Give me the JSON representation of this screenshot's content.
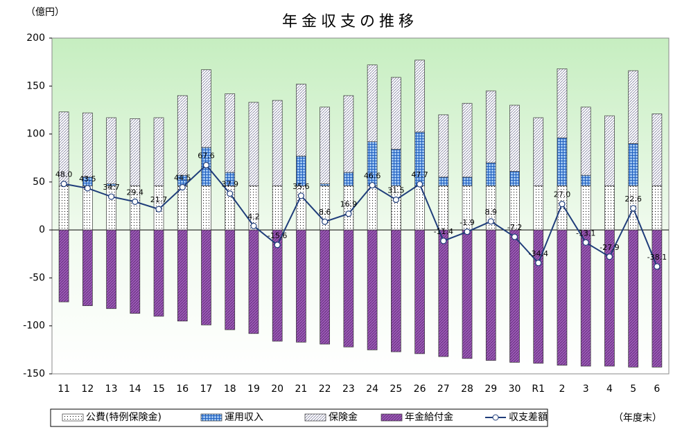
{
  "chart_data": {
    "type": "bar",
    "title": "年金収支の推移",
    "y_unit": "（億円）",
    "x_unit": "（年度末）",
    "categories": [
      "11",
      "12",
      "13",
      "14",
      "15",
      "16",
      "17",
      "18",
      "19",
      "20",
      "21",
      "22",
      "23",
      "24",
      "25",
      "26",
      "27",
      "28",
      "29",
      "30",
      "R1",
      "2",
      "3",
      "4",
      "5",
      "6"
    ],
    "series": [
      {
        "name": "公費(特例保険金)",
        "color": "#000000",
        "values": [
          46,
          46,
          46,
          46,
          46,
          46,
          46,
          46,
          46,
          46,
          46,
          46,
          46,
          46,
          46,
          46,
          46,
          46,
          46,
          46,
          46,
          46,
          46,
          46,
          46,
          46
        ]
      },
      {
        "name": "運用収入",
        "color": "#1f5fbf",
        "values": [
          0,
          9,
          2,
          0,
          0,
          11,
          40,
          14,
          0,
          0,
          31,
          2,
          14,
          46,
          38,
          56,
          9,
          9,
          24,
          15,
          0,
          50,
          11,
          0,
          44,
          0
        ]
      },
      {
        "name": "保険金",
        "color": "#7f7f9f",
        "values": [
          77,
          67,
          69,
          70,
          71,
          83,
          81,
          82,
          87,
          89,
          75,
          80,
          80,
          80,
          75,
          75,
          65,
          77,
          75,
          69,
          71,
          72,
          71,
          73,
          76,
          75
        ]
      },
      {
        "name": "年金給付金",
        "color": "#9b59b6",
        "values": [
          -75,
          -79,
          -82,
          -87,
          -90,
          -95,
          -99,
          -104,
          -108,
          -116,
          -117,
          -119,
          -122,
          -125,
          -127,
          -129,
          -132,
          -134,
          -136,
          -138,
          -139,
          -141,
          -142,
          -142,
          -143,
          -143
        ]
      },
      {
        "name": "収支差額",
        "type": "line",
        "color": "#1f3d7a",
        "values": [
          48.0,
          43.5,
          34.7,
          29.4,
          21.7,
          44.5,
          67.6,
          37.9,
          4.2,
          -15.6,
          35.6,
          8.6,
          16.9,
          46.6,
          31.5,
          47.7,
          -11.4,
          -1.9,
          8.9,
          -7.2,
          -34.4,
          27.0,
          -13.1,
          -27.9,
          22.6,
          -38.1
        ],
        "value_labels": [
          "48.0",
          "43.5",
          "34.7",
          "29.4",
          "21.7",
          "44.5",
          "67.6",
          "37.9",
          "4.2",
          "-15.6",
          "35.6",
          "8.6",
          "16.9",
          "46.6",
          "31.5",
          "47.7",
          "-11.4",
          "-1.9",
          "8.9",
          "-7.2",
          "-34.4",
          "27.0",
          "-13.1",
          "-27.9",
          "22.6",
          "-38.1"
        ]
      }
    ],
    "ylim": [
      -150,
      200
    ],
    "yticks": [
      -150,
      -100,
      -50,
      0,
      50,
      100,
      150,
      200
    ],
    "grid": false
  }
}
